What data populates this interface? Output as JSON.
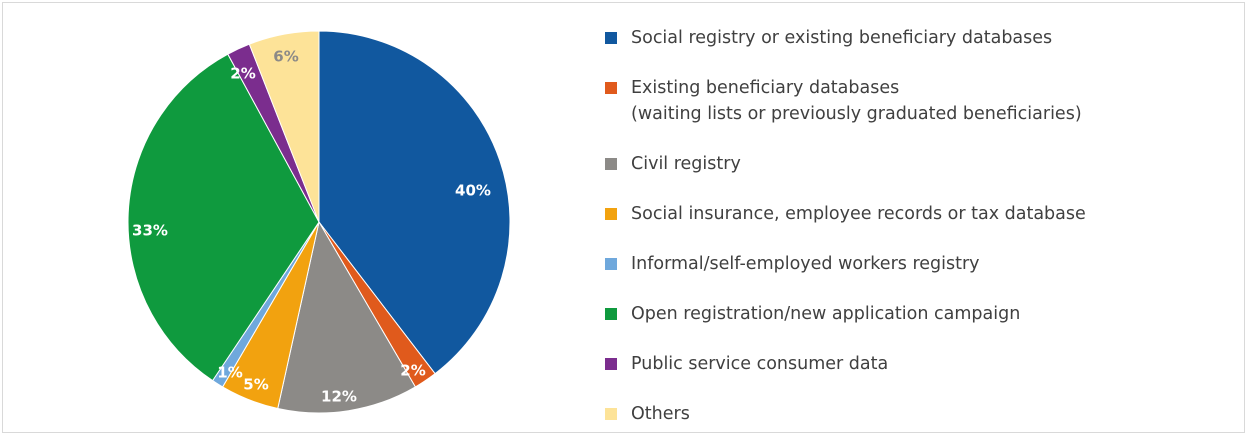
{
  "chart_data": {
    "type": "pie",
    "title": "",
    "legend_position": "right",
    "slices": [
      {
        "label": "Social registry or existing beneficiary databases",
        "label_lines": [
          "Social registry or existing beneficiary databases"
        ],
        "value": 40,
        "display": "40%",
        "color": "#11589f",
        "label_color": "#ffffff"
      },
      {
        "label": "Existing beneficiary databases (waiting lists or previously graduated beneficiaries)",
        "label_lines": [
          "Existing beneficiary databases",
          "(waiting lists or previously graduated beneficiaries)"
        ],
        "value": 2,
        "display": "2%",
        "color": "#e05a1c",
        "label_color": "#ffffff"
      },
      {
        "label": "Civil registry",
        "label_lines": [
          "Civil registry"
        ],
        "value": 12,
        "display": "12%",
        "color": "#8c8a87",
        "label_color": "#ffffff"
      },
      {
        "label": "Social insurance, employee records or tax database",
        "label_lines": [
          "Social insurance, employee records or tax database"
        ],
        "value": 5,
        "display": "5%",
        "color": "#f2a20f",
        "label_color": "#ffffff"
      },
      {
        "label": "Informal/self-employed workers registry",
        "label_lines": [
          "Informal/self-employed workers registry"
        ],
        "value": 1,
        "display": "1%",
        "color": "#6fa8dc",
        "label_color": "#ffffff"
      },
      {
        "label": "Open registration/new application campaign",
        "label_lines": [
          "Open registration/new application campaign"
        ],
        "value": 33,
        "display": "33%",
        "color": "#0f9a3e",
        "label_color": "#ffffff"
      },
      {
        "label": "Public service consumer data",
        "label_lines": [
          "Public service consumer data"
        ],
        "value": 2,
        "display": "2%",
        "color": "#7b2d8e",
        "label_color": "#ffffff"
      },
      {
        "label": "Others",
        "label_lines": [
          "Others"
        ],
        "value": 6,
        "display": "6%",
        "color": "#fde398",
        "label_color": "#8c8a87"
      }
    ]
  }
}
